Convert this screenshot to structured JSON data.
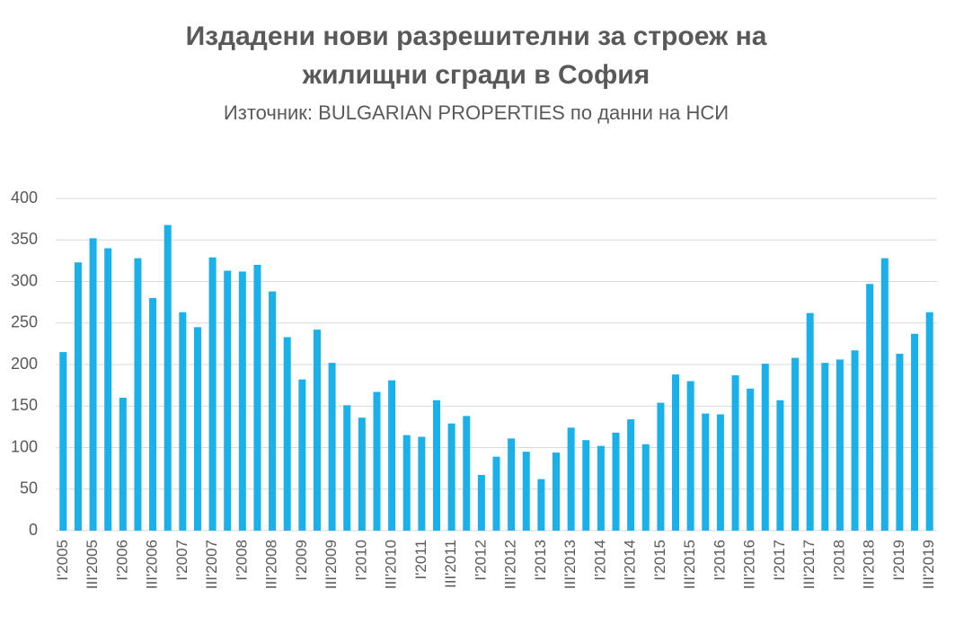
{
  "chart_data": {
    "type": "bar",
    "title": [
      "Издадени нови разрешителни за строеж на",
      "жилищни сгради в София"
    ],
    "subtitle": "Източник: BULGARIAN PROPERTIES по данни на НСИ",
    "categories": [
      "I'2005",
      null,
      "III'2005",
      null,
      "I'2006",
      null,
      "III'2006",
      null,
      "I'2007",
      null,
      "III'2007",
      null,
      "I'2008",
      null,
      "III'2008",
      null,
      "I'2009",
      null,
      "III'2009",
      null,
      "I'2010",
      null,
      "III'2010",
      null,
      "I'2011",
      null,
      "III'2011",
      null,
      "I'2012",
      null,
      "III'2012",
      null,
      "I'2013",
      null,
      "III'2013",
      null,
      "I'2014",
      null,
      "III'2014",
      null,
      "I'2015",
      null,
      "III'2015",
      null,
      "I'2016",
      null,
      "III'2016",
      null,
      "I'2017",
      null,
      "III'2017",
      null,
      "I'2018",
      null,
      "III'2018",
      null,
      "I'2019",
      null,
      "III'2019"
    ],
    "values": [
      215,
      323,
      352,
      340,
      160,
      328,
      280,
      368,
      263,
      245,
      329,
      313,
      312,
      320,
      288,
      233,
      182,
      242,
      202,
      151,
      136,
      167,
      181,
      115,
      113,
      157,
      129,
      138,
      67,
      89,
      111,
      95,
      62,
      94,
      124,
      109,
      102,
      118,
      134,
      104,
      154,
      188,
      180,
      141,
      140,
      187,
      171,
      201,
      157,
      208,
      262,
      202,
      206,
      217,
      297,
      328,
      213,
      237,
      263
    ],
    "color": "#1ab0e9",
    "ylim": [
      0,
      400
    ],
    "yticks": [
      0,
      50,
      100,
      150,
      200,
      250,
      300,
      350,
      400
    ],
    "grid": true
  }
}
